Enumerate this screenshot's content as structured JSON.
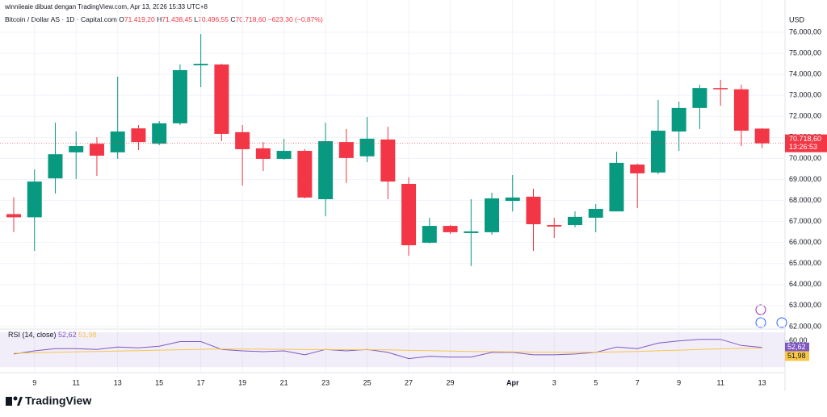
{
  "header": {
    "attribution": "winniieaie dibuat dengan TradingView.com, Apr 13, 2026 15:33 UTC+8",
    "symbol": "Bitcoin / Dollar AS · 1D · Capital.com",
    "ohlc": [
      {
        "label": "O",
        "value": "71.419,20"
      },
      {
        "label": "H",
        "value": "71.438,45"
      },
      {
        "label": "L",
        "value": "70.496,55"
      },
      {
        "label": "C",
        "value": "70.718,60"
      }
    ],
    "change": "−623,30 (−0,87%)"
  },
  "branding": "TradingView",
  "chart_data": [
    {
      "type": "candlestick",
      "currency": "USD",
      "categories": [
        null,
        "9",
        null,
        "11",
        null,
        "13",
        null,
        "15",
        null,
        "17",
        null,
        "19",
        null,
        "21",
        null,
        "23",
        null,
        "25",
        null,
        "27",
        null,
        "29",
        null,
        null,
        "Apr",
        null,
        "3",
        null,
        "5",
        null,
        "7",
        null,
        "9",
        null,
        "11",
        null,
        "13"
      ],
      "open": [
        67350,
        67200,
        69050,
        70290,
        70700,
        70290,
        71430,
        70700,
        71670,
        74430,
        74470,
        71250,
        70480,
        69980,
        70360,
        68060,
        70780,
        70100,
        70900,
        68790,
        65990,
        66790,
        66450,
        66490,
        67980,
        68180,
        66830,
        66830,
        67180,
        67480,
        69710,
        69330,
        71280,
        72400,
        73350,
        73290,
        71419.2
      ],
      "high": [
        68150,
        69480,
        71700,
        71280,
        71010,
        73890,
        71590,
        71780,
        74470,
        75920,
        74500,
        71590,
        70780,
        70940,
        70440,
        71700,
        71400,
        71970,
        71510,
        69100,
        67180,
        66830,
        68060,
        68370,
        69210,
        68560,
        67180,
        67480,
        67830,
        70320,
        69750,
        72780,
        72700,
        73510,
        73740,
        73510,
        71438.45
      ],
      "low": [
        66500,
        65600,
        68330,
        69020,
        69170,
        69980,
        70400,
        70630,
        71590,
        73390,
        70820,
        68710,
        69400,
        69940,
        68100,
        67250,
        68830,
        69820,
        68060,
        65370,
        65950,
        66410,
        64880,
        66370,
        67480,
        65600,
        66220,
        66720,
        66490,
        67480,
        67640,
        69250,
        70360,
        71400,
        72510,
        70590,
        70496.55
      ],
      "close": [
        67200,
        68900,
        70200,
        70590,
        70130,
        71280,
        70780,
        71670,
        74200,
        74500,
        71170,
        70440,
        69980,
        70360,
        68140,
        70820,
        70020,
        70940,
        68900,
        65870,
        66790,
        66490,
        66530,
        68100,
        68140,
        66870,
        66760,
        67220,
        67600,
        69790,
        69290,
        71320,
        72400,
        73350,
        73290,
        71320,
        70718.6
      ],
      "up_color": "#089981",
      "down_color": "#f23645",
      "last_label": "70.718,60",
      "countdown": "13:26:53",
      "ylim": [
        61920,
        77230
      ],
      "yticks": [
        {
          "value": 62000,
          "label": "62.000,00"
        },
        {
          "value": 63000,
          "label": "63.000,00"
        },
        {
          "value": 64000,
          "label": "64.000,00"
        },
        {
          "value": 65000,
          "label": "65.000,00"
        },
        {
          "value": 66000,
          "label": "66.000,00"
        },
        {
          "value": 67000,
          "label": "67.000,00"
        },
        {
          "value": 68000,
          "label": "68.000,00"
        },
        {
          "value": 69000,
          "label": "69.000,00"
        },
        {
          "value": 70000,
          "label": "70.000,00"
        },
        {
          "value": 71000,
          "label": "71.000,00"
        },
        {
          "value": 72000,
          "label": "72.000,00"
        },
        {
          "value": 73000,
          "label": "73.000,00"
        },
        {
          "value": 74000,
          "label": "74.000,00"
        },
        {
          "value": 75000,
          "label": "75.000,00"
        },
        {
          "value": 76000,
          "label": "76.000,00"
        }
      ],
      "grid": true
    },
    {
      "type": "line",
      "title": "RSI (14, close)",
      "series": [
        {
          "name": "RSI",
          "color": "#7e57c2",
          "last_label": "52,62",
          "values": [
            45.1,
            48.7,
            51.3,
            51.3,
            50.4,
            53.1,
            52.2,
            54,
            59.3,
            59.3,
            50.4,
            48.7,
            47.8,
            48.7,
            44.2,
            50.4,
            48.7,
            50.4,
            46.9,
            39.8,
            42.4,
            41.6,
            41.6,
            46.9,
            46.9,
            44.2,
            44.2,
            45.1,
            46.9,
            53.1,
            51.3,
            57.6,
            60.2,
            61.9,
            61.9,
            54.9,
            52.62
          ]
        },
        {
          "name": "MA",
          "color": "#f7c548",
          "last_label": "51,98",
          "values": [
            46,
            46.5,
            47,
            47.5,
            48,
            48.5,
            49,
            49.5,
            50,
            50.5,
            50.8,
            50.8,
            50.6,
            50.5,
            50.3,
            50.2,
            50.1,
            50,
            49.8,
            49.3,
            48.9,
            48.5,
            48,
            47.8,
            47.5,
            47.2,
            47,
            46.9,
            47,
            47.5,
            48,
            48.8,
            49.5,
            50.3,
            51,
            51.6,
            51.98
          ]
        }
      ],
      "band": [
        30,
        70
      ],
      "band_color": "#7e57c2",
      "ylim": [
        25.6,
        71.8
      ],
      "yticks": [
        {
          "value": 60,
          "label": "60,00"
        }
      ]
    }
  ]
}
